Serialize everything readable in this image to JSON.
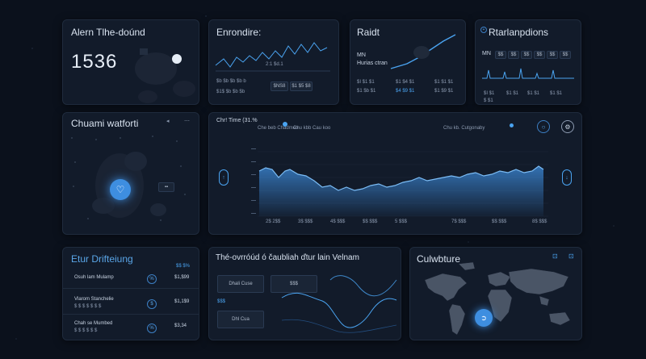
{
  "alerts": {
    "title": "Alern Tlhe-doúnd",
    "value": "1536"
  },
  "frontline": {
    "title": "Enrondire:",
    "labels": [
      "$b $b $b $b b",
      "$1$ $b $b $b",
      "2:1 $d.1"
    ],
    "badges": [
      "$NS8",
      "$1 $5 $8"
    ]
  },
  "radit": {
    "title": "Raidt",
    "sub1": "MN",
    "sub2": "Hurias ctran",
    "cols": [
      [
        "$I $1 $1",
        "$1 $b $1"
      ],
      [
        "$1 $4 $1",
        "$4 $9 $1"
      ],
      [
        "$1 $1 $1",
        "$1 $9 $1"
      ]
    ]
  },
  "relations": {
    "title": "Rtarlanpdions",
    "mn": "MN",
    "chips": [
      "$$",
      "$$",
      "$$",
      "$$",
      "$$",
      "$$"
    ],
    "rows": [
      "$ $1",
      "$I $1",
      "$1 $1",
      "$1 $1",
      "$1 $1"
    ]
  },
  "channel": {
    "title": "Chuami watforti"
  },
  "timeline": {
    "title": "Chr! Time (31.%",
    "legend": [
      "Che beb Chadmeo",
      "Chu kbb Cau koo",
      "Chu kb. Cutgonaby"
    ],
    "x_ticks": [
      "2$ 2$$",
      "3$ $$$",
      "4$ $$$",
      "$$ $$$",
      "5 $$$",
      "7$ $$$",
      "$$ $$$",
      "8$ $$$"
    ]
  },
  "distribution": {
    "title": "Etur Drifteiung",
    "header": "$$ $%",
    "rows": [
      {
        "label": "Osuh lam Mulamp",
        "btn": "%",
        "value": "$1,$99"
      },
      {
        "label": "Vlarom Stanchelie",
        "sub": "$ $ $ $ $ $ $",
        "btn": "$",
        "value": "$1,1$9"
      },
      {
        "label": "Chah se Mumbed",
        "sub": "$ $ $ $ $ $",
        "btn": "%",
        "value": "$3,34"
      }
    ]
  },
  "overview": {
    "title": "Thé-ovrróúd ó čaubliah ďtur lain Velnam",
    "boxes": [
      "Dhali Cuse",
      "$$$",
      "$$$",
      "Dhl Cua"
    ]
  },
  "map": {
    "title": "Culwbture"
  },
  "colors": {
    "accent": "#4aa3f0",
    "panel": "#121b2a",
    "bg": "#0b111c"
  }
}
